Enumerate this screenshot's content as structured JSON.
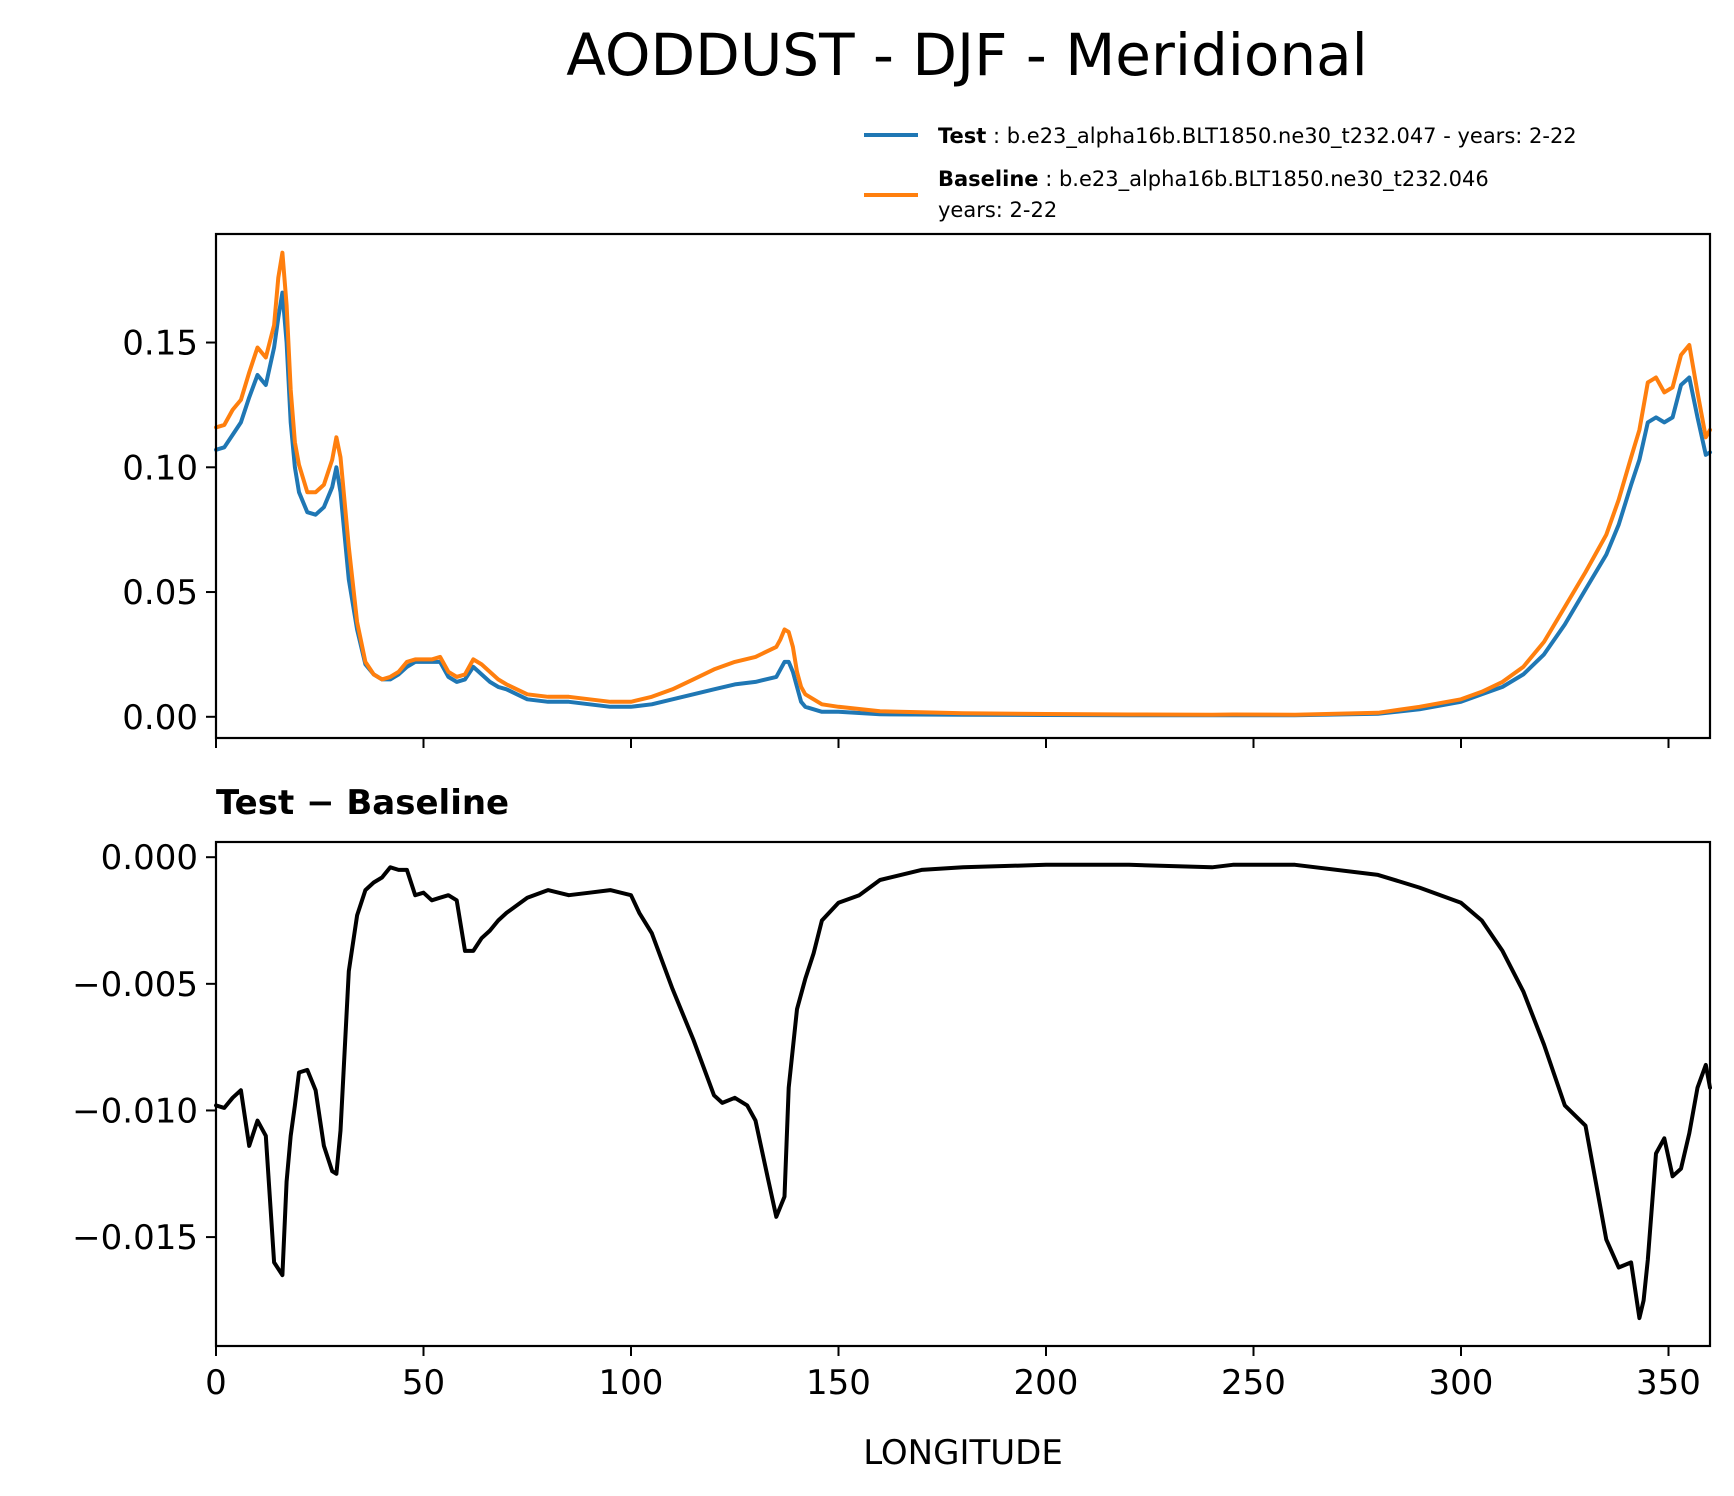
{
  "chart_data": [
    {
      "type": "line",
      "title": "AODDUST - DJF - Meridional",
      "xlabel": "",
      "ylabel": "",
      "xlim": [
        0,
        360
      ],
      "ylim": [
        -0.0085,
        0.1935
      ],
      "yticks": [
        "0.00",
        "0.05",
        "0.10",
        "0.15"
      ],
      "ytick_values": [
        0.0,
        0.05,
        0.1,
        0.15
      ],
      "xticks": [
        0,
        50,
        100,
        150,
        200,
        250,
        300,
        350
      ],
      "legend": {
        "placement": "above-top-right",
        "entries": [
          {
            "label_bold": "Test",
            "label": ": b.e23_alpha16b.BLT1850.ne30_t232.047 - years: 2-22",
            "color": "#1f77b4"
          },
          {
            "label_bold": "Baseline",
            "label": ": b.e23_alpha16b.BLT1850.ne30_t232.046",
            "label_line2": "years: 2-22",
            "color": "#ff7f0e"
          }
        ]
      },
      "series": [
        {
          "name": "Test",
          "color": "#1f77b4",
          "x": [
            0,
            2,
            4,
            6,
            8,
            10,
            12,
            14,
            15,
            16,
            17,
            18,
            19,
            20,
            22,
            24,
            26,
            28,
            29,
            30,
            32,
            34,
            36,
            38,
            40,
            42,
            44,
            46,
            48,
            50,
            52,
            54,
            56,
            58,
            60,
            62,
            64,
            66,
            68,
            70,
            75,
            80,
            85,
            90,
            95,
            100,
            105,
            110,
            115,
            120,
            125,
            130,
            135,
            136,
            137,
            138,
            139,
            140,
            141,
            142,
            144,
            146,
            150,
            160,
            180,
            200,
            220,
            240,
            245,
            260,
            280,
            290,
            300,
            305,
            310,
            315,
            320,
            325,
            330,
            335,
            338,
            341,
            343,
            345,
            347,
            349,
            351,
            353,
            355,
            357,
            359,
            360
          ],
          "values": [
            0.107,
            0.108,
            0.113,
            0.118,
            0.128,
            0.137,
            0.133,
            0.148,
            0.16,
            0.17,
            0.15,
            0.118,
            0.1,
            0.09,
            0.082,
            0.081,
            0.084,
            0.092,
            0.1,
            0.09,
            0.055,
            0.035,
            0.021,
            0.017,
            0.015,
            0.015,
            0.017,
            0.02,
            0.022,
            0.022,
            0.022,
            0.022,
            0.016,
            0.014,
            0.015,
            0.02,
            0.017,
            0.014,
            0.012,
            0.011,
            0.007,
            0.006,
            0.006,
            0.005,
            0.004,
            0.004,
            0.005,
            0.007,
            0.009,
            0.011,
            0.013,
            0.014,
            0.016,
            0.019,
            0.022,
            0.022,
            0.018,
            0.012,
            0.006,
            0.004,
            0.003,
            0.002,
            0.002,
            0.001,
            0.0008,
            0.0007,
            0.0006,
            0.0006,
            0.0006,
            0.0006,
            0.0012,
            0.003,
            0.006,
            0.009,
            0.012,
            0.017,
            0.025,
            0.037,
            0.051,
            0.065,
            0.077,
            0.093,
            0.103,
            0.118,
            0.12,
            0.118,
            0.12,
            0.133,
            0.136,
            0.12,
            0.105,
            0.106
          ]
        },
        {
          "name": "Baseline",
          "color": "#ff7f0e",
          "x": [
            0,
            2,
            4,
            6,
            8,
            10,
            12,
            14,
            15,
            16,
            17,
            18,
            19,
            20,
            22,
            24,
            26,
            28,
            29,
            30,
            32,
            34,
            36,
            38,
            40,
            42,
            44,
            46,
            48,
            50,
            52,
            54,
            56,
            58,
            60,
            62,
            64,
            66,
            68,
            70,
            75,
            80,
            85,
            90,
            95,
            100,
            105,
            110,
            115,
            120,
            125,
            130,
            135,
            136,
            137,
            138,
            139,
            140,
            141,
            142,
            144,
            146,
            150,
            160,
            180,
            200,
            220,
            240,
            245,
            260,
            280,
            290,
            300,
            305,
            310,
            315,
            320,
            325,
            330,
            335,
            338,
            341,
            343,
            345,
            347,
            349,
            351,
            353,
            355,
            357,
            359,
            360
          ],
          "values": [
            0.116,
            0.117,
            0.123,
            0.127,
            0.138,
            0.148,
            0.144,
            0.157,
            0.176,
            0.186,
            0.165,
            0.131,
            0.11,
            0.101,
            0.09,
            0.09,
            0.093,
            0.103,
            0.112,
            0.104,
            0.068,
            0.038,
            0.022,
            0.017,
            0.015,
            0.016,
            0.018,
            0.022,
            0.023,
            0.023,
            0.023,
            0.024,
            0.018,
            0.016,
            0.017,
            0.023,
            0.021,
            0.018,
            0.015,
            0.013,
            0.009,
            0.008,
            0.008,
            0.007,
            0.006,
            0.006,
            0.008,
            0.011,
            0.015,
            0.019,
            0.022,
            0.024,
            0.028,
            0.031,
            0.035,
            0.034,
            0.028,
            0.018,
            0.012,
            0.009,
            0.007,
            0.005,
            0.004,
            0.0022,
            0.0014,
            0.0011,
            0.0009,
            0.0008,
            0.0009,
            0.0008,
            0.0016,
            0.004,
            0.007,
            0.01,
            0.014,
            0.02,
            0.03,
            0.044,
            0.058,
            0.073,
            0.087,
            0.104,
            0.115,
            0.134,
            0.136,
            0.13,
            0.132,
            0.145,
            0.149,
            0.13,
            0.112,
            0.115
          ]
        }
      ]
    },
    {
      "type": "line",
      "title": "Test − Baseline",
      "xlabel": "LONGITUDE",
      "ylabel": "",
      "xlim": [
        0,
        360
      ],
      "ylim": [
        -0.0193,
        0.0006
      ],
      "yticks": [
        "0.000",
        "−0.005",
        "−0.010",
        "−0.015"
      ],
      "ytick_values": [
        0.0,
        -0.005,
        -0.01,
        -0.015
      ],
      "xticks": [
        0,
        50,
        100,
        150,
        200,
        250,
        300,
        350
      ],
      "xtick_labels": [
        "0",
        "50",
        "100",
        "150",
        "200",
        "250",
        "300",
        "350"
      ],
      "series": [
        {
          "name": "Test - Baseline",
          "color": "#000000",
          "x": [
            0,
            2,
            4,
            6,
            8,
            10,
            12,
            14,
            16,
            17,
            18,
            19,
            20,
            22,
            24,
            26,
            28,
            29,
            30,
            32,
            34,
            36,
            38,
            40,
            42,
            44,
            46,
            48,
            50,
            52,
            54,
            56,
            58,
            60,
            62,
            64,
            66,
            68,
            70,
            75,
            80,
            85,
            90,
            95,
            100,
            102,
            105,
            110,
            115,
            120,
            122,
            125,
            128,
            130,
            133,
            135,
            137,
            138,
            140,
            142,
            144,
            146,
            150,
            155,
            160,
            170,
            180,
            200,
            220,
            240,
            245,
            260,
            280,
            290,
            300,
            305,
            310,
            315,
            320,
            325,
            330,
            335,
            338,
            341,
            343,
            344,
            345,
            347,
            349,
            351,
            353,
            355,
            357,
            359,
            360
          ],
          "values": [
            -0.0098,
            -0.0099,
            -0.0095,
            -0.0092,
            -0.0114,
            -0.0104,
            -0.011,
            -0.016,
            -0.0165,
            -0.0128,
            -0.011,
            -0.0098,
            -0.0085,
            -0.0084,
            -0.0092,
            -0.0114,
            -0.0124,
            -0.0125,
            -0.0108,
            -0.0045,
            -0.0023,
            -0.0013,
            -0.001,
            -0.0008,
            -0.0004,
            -0.0005,
            -0.0005,
            -0.0015,
            -0.0014,
            -0.0017,
            -0.0016,
            -0.0015,
            -0.0017,
            -0.0037,
            -0.0037,
            -0.0032,
            -0.0029,
            -0.0025,
            -0.0022,
            -0.0016,
            -0.0013,
            -0.0015,
            -0.0014,
            -0.0013,
            -0.0015,
            -0.0022,
            -0.003,
            -0.0052,
            -0.0072,
            -0.0094,
            -0.0097,
            -0.0095,
            -0.0098,
            -0.0104,
            -0.0127,
            -0.0142,
            -0.0134,
            -0.0091,
            -0.006,
            -0.0048,
            -0.0038,
            -0.0025,
            -0.0018,
            -0.0015,
            -0.0009,
            -0.0005,
            -0.0004,
            -0.0003,
            -0.0003,
            -0.0004,
            -0.0003,
            -0.0003,
            -0.0007,
            -0.0012,
            -0.0018,
            -0.0025,
            -0.0037,
            -0.0053,
            -0.0074,
            -0.0098,
            -0.0106,
            -0.0151,
            -0.0162,
            -0.016,
            -0.0182,
            -0.0175,
            -0.0159,
            -0.0117,
            -0.0111,
            -0.0126,
            -0.0123,
            -0.0109,
            -0.0091,
            -0.0082,
            -0.0091
          ]
        }
      ]
    }
  ]
}
